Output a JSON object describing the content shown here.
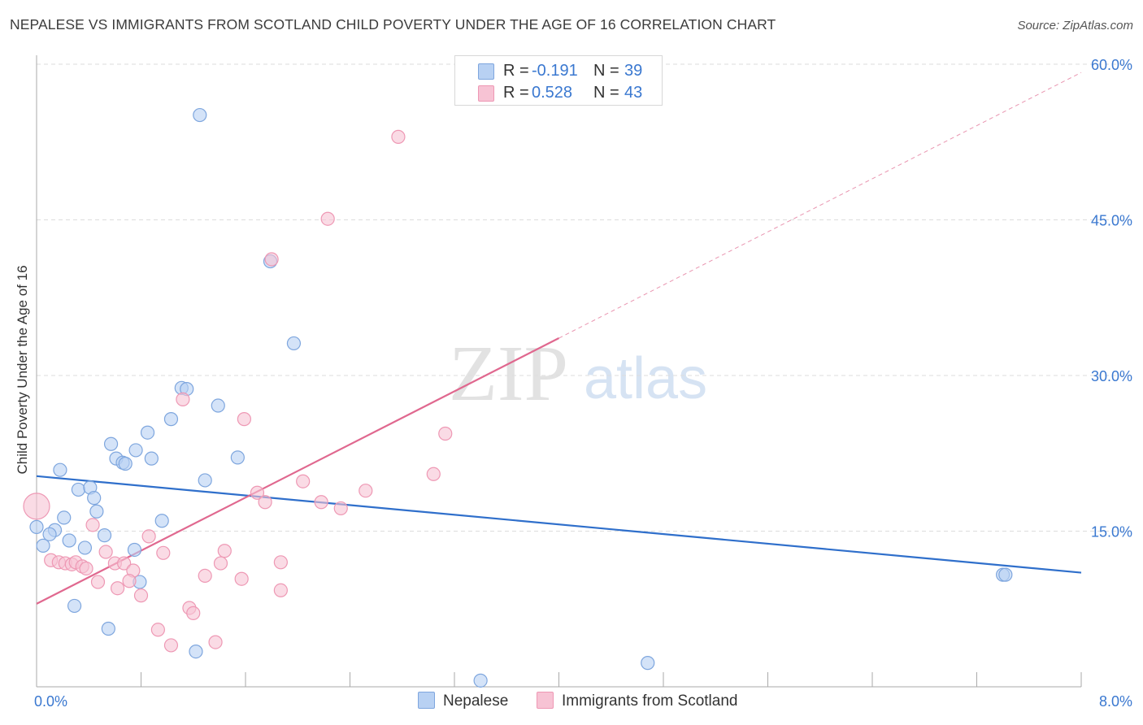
{
  "title": "NEPALESE VS IMMIGRANTS FROM SCOTLAND CHILD POVERTY UNDER THE AGE OF 16 CORRELATION CHART",
  "source": "Source: ZipAtlas.com",
  "watermark": {
    "zip": "ZIP",
    "atlas": "atlas"
  },
  "colors": {
    "blue_fill": "#b8d1f3",
    "blue_stroke": "#7ea6de",
    "blue_line": "#2f6fcb",
    "pink_fill": "#f7c3d4",
    "pink_stroke": "#ee98b4",
    "pink_line": "#e0688f",
    "tick_text": "#3a78d0",
    "grid": "#dddddd"
  },
  "stats_legend": [
    {
      "r_label": "R =",
      "r_value": "-0.191",
      "n_label": "N =",
      "n_value": "39",
      "swatch": "blue"
    },
    {
      "r_label": "R =",
      "r_value": "0.528",
      "n_label": "N =",
      "n_value": "43",
      "swatch": "pink"
    }
  ],
  "legend": [
    {
      "name": "Nepalese",
      "swatch": "blue"
    },
    {
      "name": "Immigrants from Scotland",
      "swatch": "pink"
    }
  ],
  "chart_data": {
    "type": "scatter",
    "title": "NEPALESE VS IMMIGRANTS FROM SCOTLAND CHILD POVERTY UNDER THE AGE OF 16 CORRELATION CHART",
    "xlabel": "",
    "ylabel": "Child Poverty Under the Age of 16",
    "xlim": [
      0,
      8
    ],
    "ylim": [
      0,
      60
    ],
    "x_tick_labels": [
      {
        "value": 0,
        "label": "0.0%"
      },
      {
        "value": 8,
        "label": "8.0%"
      }
    ],
    "x_minor_ticks": [
      0.8,
      1.6,
      2.4,
      3.2,
      4.0,
      4.8,
      5.6,
      6.4,
      7.2,
      8.0
    ],
    "y_ticks": [
      {
        "value": 15,
        "label": "15.0%"
      },
      {
        "value": 30,
        "label": "30.0%"
      },
      {
        "value": 45,
        "label": "45.0%"
      },
      {
        "value": 60,
        "label": "60.0%"
      }
    ],
    "grid": true,
    "legend_position": "bottom-center",
    "series": [
      {
        "name": "Nepalese",
        "color": "blue",
        "points": [
          [
            1.25,
            55.1
          ],
          [
            1.79,
            41.0
          ],
          [
            1.97,
            33.1
          ],
          [
            1.11,
            28.8
          ],
          [
            1.15,
            28.7
          ],
          [
            1.39,
            27.1
          ],
          [
            1.03,
            25.8
          ],
          [
            0.85,
            24.5
          ],
          [
            0.57,
            23.4
          ],
          [
            0.76,
            22.8
          ],
          [
            0.61,
            22.0
          ],
          [
            0.66,
            21.6
          ],
          [
            0.68,
            21.5
          ],
          [
            0.88,
            22.0
          ],
          [
            1.54,
            22.1
          ],
          [
            0.18,
            20.9
          ],
          [
            1.29,
            19.9
          ],
          [
            0.32,
            19.0
          ],
          [
            0.41,
            19.2
          ],
          [
            0.44,
            18.2
          ],
          [
            0.46,
            16.9
          ],
          [
            0.21,
            16.3
          ],
          [
            0.96,
            16.0
          ],
          [
            0.0,
            15.4
          ],
          [
            0.14,
            15.1
          ],
          [
            0.1,
            14.7
          ],
          [
            0.52,
            14.6
          ],
          [
            0.25,
            14.1
          ],
          [
            0.05,
            13.6
          ],
          [
            0.37,
            13.4
          ],
          [
            0.75,
            13.2
          ],
          [
            0.79,
            10.1
          ],
          [
            0.29,
            7.8
          ],
          [
            0.55,
            5.6
          ],
          [
            1.22,
            3.4
          ],
          [
            4.68,
            2.3
          ],
          [
            3.4,
            0.6
          ],
          [
            7.4,
            10.8
          ],
          [
            7.42,
            10.8
          ]
        ],
        "trend": {
          "x": [
            0.0,
            8.0
          ],
          "y": [
            20.3,
            11.0
          ]
        }
      },
      {
        "name": "Immigrants from Scotland",
        "color": "pink",
        "points": [
          [
            2.77,
            53.0
          ],
          [
            2.23,
            45.1
          ],
          [
            1.8,
            41.2
          ],
          [
            1.12,
            27.7
          ],
          [
            1.59,
            25.8
          ],
          [
            3.13,
            24.4
          ],
          [
            3.04,
            20.5
          ],
          [
            2.04,
            19.8
          ],
          [
            2.52,
            18.9
          ],
          [
            1.69,
            18.7
          ],
          [
            1.75,
            17.8
          ],
          [
            2.18,
            17.8
          ],
          [
            2.33,
            17.2
          ],
          [
            0.0,
            17.4
          ],
          [
            0.43,
            15.6
          ],
          [
            0.86,
            14.5
          ],
          [
            0.53,
            13.0
          ],
          [
            1.44,
            13.1
          ],
          [
            0.97,
            12.9
          ],
          [
            0.11,
            12.2
          ],
          [
            0.17,
            12.0
          ],
          [
            0.22,
            11.9
          ],
          [
            0.27,
            11.8
          ],
          [
            0.3,
            12.0
          ],
          [
            0.6,
            11.9
          ],
          [
            0.67,
            11.9
          ],
          [
            1.41,
            11.9
          ],
          [
            1.87,
            12.0
          ],
          [
            0.35,
            11.6
          ],
          [
            0.38,
            11.4
          ],
          [
            0.74,
            11.2
          ],
          [
            1.29,
            10.7
          ],
          [
            1.57,
            10.4
          ],
          [
            0.47,
            10.1
          ],
          [
            0.71,
            10.2
          ],
          [
            0.62,
            9.5
          ],
          [
            1.87,
            9.3
          ],
          [
            0.8,
            8.8
          ],
          [
            1.17,
            7.6
          ],
          [
            1.2,
            7.1
          ],
          [
            0.93,
            5.5
          ],
          [
            1.03,
            4.0
          ],
          [
            1.37,
            4.3
          ]
        ],
        "trend": {
          "x": [
            0.0,
            4.0
          ],
          "y": [
            8.0,
            33.6
          ]
        },
        "trend_extension": {
          "x": [
            4.0,
            8.0
          ],
          "y": [
            33.6,
            59.2
          ]
        }
      }
    ]
  }
}
